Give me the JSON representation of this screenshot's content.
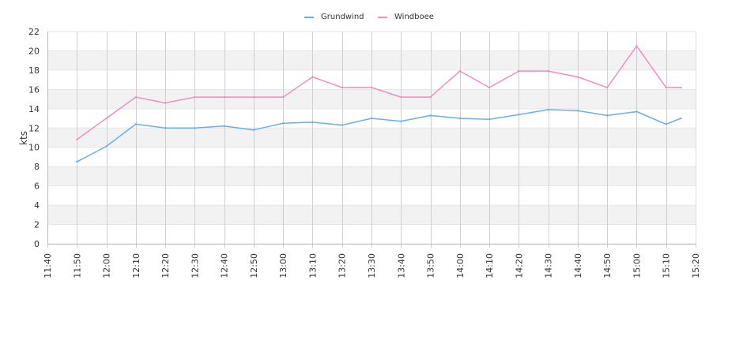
{
  "chart_data": {
    "type": "line",
    "ylabel": "kts",
    "x_ticks": [
      "11:40",
      "11:50",
      "12:00",
      "12:10",
      "12:20",
      "12:30",
      "12:40",
      "12:50",
      "13:00",
      "13:10",
      "13:20",
      "13:30",
      "13:40",
      "13:50",
      "14:00",
      "14:10",
      "14:20",
      "14:30",
      "14:40",
      "14:50",
      "15:00",
      "15:10",
      "15:20"
    ],
    "x": [
      "11:50",
      "12:00",
      "12:10",
      "12:20",
      "12:30",
      "12:40",
      "12:50",
      "13:00",
      "13:10",
      "13:20",
      "13:30",
      "13:40",
      "13:50",
      "14:00",
      "14:10",
      "14:20",
      "14:30",
      "14:40",
      "14:50",
      "15:00",
      "15:10",
      "15:15"
    ],
    "ylim": [
      0,
      22
    ],
    "y_ticks": [
      0,
      2,
      4,
      6,
      8,
      10,
      12,
      14,
      16,
      18,
      20,
      22
    ],
    "grid": "vertical lines and alternating horizontal bands",
    "legend_position": "top-center",
    "series": [
      {
        "name": "Grundwind",
        "color": "#6aaee8",
        "values": [
          8.5,
          10.1,
          12.4,
          12.0,
          12.0,
          12.2,
          11.8,
          12.5,
          12.6,
          12.3,
          13.0,
          12.7,
          13.3,
          13.0,
          12.9,
          13.4,
          13.9,
          13.8,
          13.3,
          13.7,
          12.4,
          13.0
        ]
      },
      {
        "name": "Windboee",
        "color": "#ef8fbf",
        "values": [
          10.8,
          13.0,
          15.2,
          14.6,
          15.2,
          15.2,
          15.2,
          15.2,
          17.3,
          16.2,
          16.2,
          15.2,
          15.2,
          17.9,
          16.2,
          17.9,
          17.9,
          17.3,
          16.2,
          20.5,
          16.2,
          16.2
        ]
      }
    ]
  }
}
